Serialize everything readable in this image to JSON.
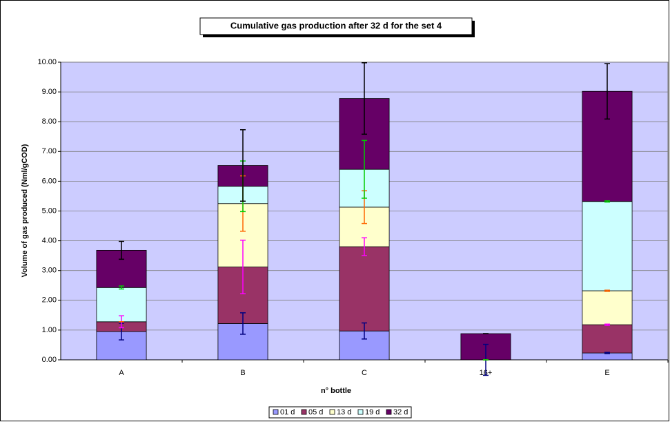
{
  "chart_data": {
    "type": "stacked_bar",
    "title": "Cumulative gas production after 32 d for the set 4",
    "x_label": "n° bottle",
    "y_label": "Volume of gas produced (Nml/gCOD)",
    "categories": [
      "A",
      "B",
      "C",
      "16+",
      "E"
    ],
    "series": [
      {
        "name": "01 d",
        "color": "#9999ff",
        "error_color": "#000080",
        "values": [
          0.95,
          1.22,
          0.97,
          0,
          0.23
        ],
        "errors": [
          0.28,
          0.36,
          0.27,
          0.52,
          0.02
        ]
      },
      {
        "name": "05 d",
        "color": "#993366",
        "error_color": "#ff00ff",
        "values": [
          0.33,
          1.9,
          2.83,
          0,
          0.95
        ],
        "errors": [
          0.2,
          0.9,
          0.3,
          0,
          0.02
        ]
      },
      {
        "name": "13 d",
        "color": "#ffffcc",
        "error_color": "#ff6600",
        "values": [
          0,
          2.13,
          1.33,
          0,
          1.14
        ],
        "errors": [
          0,
          0.93,
          0.55,
          0,
          0.02
        ]
      },
      {
        "name": "19 d",
        "color": "#ccffff",
        "error_color": "#00cc00",
        "values": [
          1.15,
          0.58,
          1.27,
          0,
          3.0
        ],
        "errors": [
          0.05,
          0.85,
          0.97,
          0,
          0.02
        ]
      },
      {
        "name": "32 d",
        "color": "#660066",
        "error_color": "#000000",
        "values": [
          1.25,
          0.7,
          2.38,
          0.88,
          3.7
        ],
        "errors": [
          0.3,
          1.2,
          1.2,
          0,
          0.93
        ]
      }
    ],
    "ylim": [
      0,
      10
    ],
    "yticks": [
      {
        "value": 0,
        "label": "0.00"
      },
      {
        "value": 1,
        "label": "1.00"
      },
      {
        "value": 2,
        "label": "2.00"
      },
      {
        "value": 3,
        "label": "3.00"
      },
      {
        "value": 4,
        "label": "4.00"
      },
      {
        "value": 5,
        "label": "5.00"
      },
      {
        "value": 6,
        "label": "6.00"
      },
      {
        "value": 7,
        "label": "7.00"
      },
      {
        "value": 8,
        "label": "8.00"
      },
      {
        "value": 9,
        "label": "9.00"
      },
      {
        "value": 10,
        "label": "10.00"
      }
    ],
    "grid": true,
    "legend": "bottom"
  }
}
